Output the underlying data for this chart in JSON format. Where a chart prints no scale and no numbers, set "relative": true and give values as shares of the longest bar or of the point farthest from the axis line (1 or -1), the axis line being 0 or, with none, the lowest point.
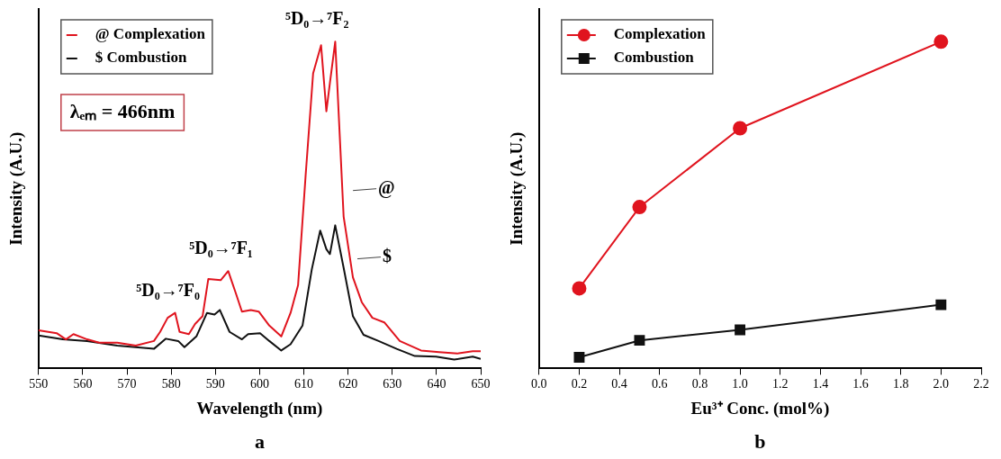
{
  "chart_data": [
    {
      "type": "line",
      "relative": true,
      "xlabel": "Wavelength (nm)",
      "ylabel": "Intensity (A.U.)",
      "xlim": [
        550,
        650
      ],
      "xticks": [
        550,
        560,
        570,
        580,
        590,
        600,
        610,
        620,
        630,
        640,
        650
      ],
      "legend": "top left",
      "marker": "none",
      "line_style": "solid",
      "grid": false,
      "series": [
        {
          "name": "@ Complexation",
          "color": "#e0141e",
          "x": [
            550,
            554.1,
            556.2,
            557.9,
            561,
            563.7,
            567.8,
            572,
            576.1,
            577.5,
            579.2,
            580.9,
            581.9,
            584,
            585.4,
            587.1,
            588.4,
            591.2,
            592.9,
            594.6,
            596,
            598,
            599.8,
            602.2,
            604.9,
            607,
            608.7,
            610.4,
            612.1,
            613.9,
            615.1,
            615.9,
            617.1,
            619,
            621.1,
            623.1,
            625.5,
            628.2,
            631.7,
            636.5,
            640.6,
            644.7,
            648.2,
            650
          ],
          "values": [
            0.117,
            0.108,
            0.089,
            0.105,
            0.089,
            0.079,
            0.079,
            0.07,
            0.084,
            0.112,
            0.155,
            0.17,
            0.112,
            0.105,
            0.136,
            0.16,
            0.274,
            0.27,
            0.298,
            0.231,
            0.174,
            0.179,
            0.174,
            0.131,
            0.098,
            0.17,
            0.255,
            0.589,
            0.903,
            0.989,
            0.787,
            0.874,
            1,
            0.465,
            0.279,
            0.203,
            0.155,
            0.141,
            0.084,
            0.055,
            0.05,
            0.046,
            0.053,
            0.053
          ]
        },
        {
          "name": "$ Combustion",
          "color": "#111111",
          "x": [
            550,
            555.5,
            561,
            567.8,
            576.1,
            578.8,
            581.6,
            583,
            585.7,
            588.1,
            589.8,
            591,
            593.2,
            596,
            597.4,
            600.1,
            602.2,
            604.9,
            607,
            609.7,
            611.8,
            613.7,
            615.1,
            615.9,
            617.1,
            619,
            621.1,
            623.5,
            626.9,
            631,
            635.1,
            639.9,
            644,
            648.2,
            650
          ],
          "values": [
            0.101,
            0.089,
            0.084,
            0.07,
            0.06,
            0.091,
            0.084,
            0.065,
            0.098,
            0.17,
            0.165,
            0.179,
            0.112,
            0.089,
            0.105,
            0.108,
            0.084,
            0.055,
            0.074,
            0.131,
            0.303,
            0.422,
            0.365,
            0.35,
            0.438,
            0.308,
            0.16,
            0.103,
            0.084,
            0.06,
            0.038,
            0.036,
            0.027,
            0.036,
            0.029
          ]
        }
      ],
      "annotations": [
        {
          "text": "⁵D₀→⁷F₀",
          "x": 580.9,
          "y": 0.17
        },
        {
          "text": "⁵D₀→⁷F₁",
          "x": 592.9,
          "y": 0.298
        },
        "⁵D₀→⁷F₂",
        "@",
        "$",
        "λₑₘ = 466nm",
        "a"
      ]
    },
    {
      "type": "line",
      "relative": true,
      "xlabel": "Eu³⁺ Conc. (mol%)",
      "ylabel": "Intensity (A.U.)",
      "xlim": [
        0,
        2.2
      ],
      "xticks": [
        {
          "value": 0,
          "label": "0.0"
        },
        {
          "value": 0.2,
          "label": "0.2"
        },
        {
          "value": 0.4,
          "label": "0.4"
        },
        {
          "value": 0.6,
          "label": "0.6"
        },
        {
          "value": 0.8,
          "label": "0.8"
        },
        {
          "value": 1,
          "label": "1.0"
        },
        {
          "value": 1.2,
          "label": "1.2"
        },
        {
          "value": 1.4,
          "label": "1.4"
        },
        {
          "value": 1.6,
          "label": "1.6"
        },
        {
          "value": 1.8,
          "label": "1.8"
        },
        {
          "value": 2,
          "label": "2.0"
        },
        {
          "value": 2.2,
          "label": "2.2"
        }
      ],
      "legend": "top left",
      "line_style": "solid",
      "grid": false,
      "x": [
        0.2,
        0.5,
        1.0,
        2.0
      ],
      "series": [
        {
          "name": "Complexation",
          "color": "#e0141e",
          "marker": "circle",
          "values": [
            0.245,
            0.494,
            0.735,
            1
          ]
        },
        {
          "name": "Combustion",
          "color": "#111111",
          "marker": "square",
          "values": [
            0.034,
            0.086,
            0.118,
            0.195
          ]
        }
      ],
      "annotations": [
        "b"
      ]
    }
  ]
}
